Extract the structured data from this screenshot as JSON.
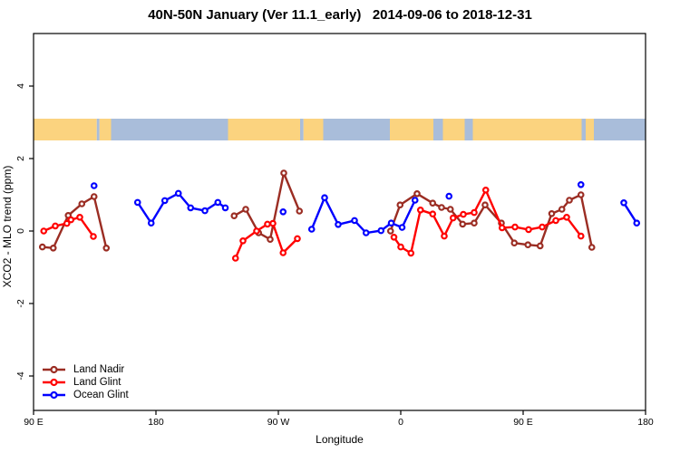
{
  "chart_data": {
    "type": "line",
    "title": "40N-50N January (Ver 11.1_early)   2014-09-06 to 2018-12-31",
    "xlabel": "Longitude",
    "ylabel": "XCO2 - MLO trend (ppm)",
    "x_axis_span": [
      90,
      540
    ],
    "y_axis_span": [
      -5.45,
      5.45
    ],
    "x_ticks": [
      {
        "pos": 90,
        "label": "90 E"
      },
      {
        "pos": 180,
        "label": "180"
      },
      {
        "pos": 270,
        "label": "90 W"
      },
      {
        "pos": 360,
        "label": "0"
      },
      {
        "pos": 450,
        "label": "90 E"
      },
      {
        "pos": 540,
        "label": "180"
      }
    ],
    "y_ticks": [
      {
        "pos": -4,
        "label": "-4"
      },
      {
        "pos": -2,
        "label": "-2"
      },
      {
        "pos": 0,
        "label": "0"
      },
      {
        "pos": 2,
        "label": "2"
      },
      {
        "pos": 4,
        "label": "4"
      }
    ],
    "map_band": {
      "y_top": 3.1,
      "y_bottom": 2.5,
      "land_color": "#FBD37F",
      "ocean_color": "#A9BDDA",
      "segments": [
        {
          "from": 90,
          "to": 136.5,
          "type": "land"
        },
        {
          "from": 136.5,
          "to": 138.5,
          "type": "ocean"
        },
        {
          "from": 138.5,
          "to": 147,
          "type": "land"
        },
        {
          "from": 147,
          "to": 233,
          "type": "ocean"
        },
        {
          "from": 233,
          "to": 286,
          "type": "land"
        },
        {
          "from": 286,
          "to": 288.5,
          "type": "ocean"
        },
        {
          "from": 288.5,
          "to": 303,
          "type": "land"
        },
        {
          "from": 303,
          "to": 352,
          "type": "ocean"
        },
        {
          "from": 352,
          "to": 384,
          "type": "land"
        },
        {
          "from": 384,
          "to": 391,
          "type": "ocean"
        },
        {
          "from": 391,
          "to": 407,
          "type": "land"
        },
        {
          "from": 407,
          "to": 413,
          "type": "ocean"
        },
        {
          "from": 413,
          "to": 493,
          "type": "land"
        },
        {
          "from": 493,
          "to": 496,
          "type": "ocean"
        },
        {
          "from": 496,
          "to": 502,
          "type": "land"
        },
        {
          "from": 502,
          "to": 540,
          "type": "ocean"
        }
      ]
    },
    "series": [
      {
        "name": "Land Nadir",
        "color": "#9B2D23",
        "segments": [
          [
            [
              96.5,
              -0.44
            ],
            [
              104.5,
              -0.47
            ],
            [
              115.5,
              0.43
            ],
            [
              125.5,
              0.75
            ],
            [
              134.5,
              0.95
            ],
            [
              143.5,
              -0.47
            ]
          ],
          [
            [
              237.5,
              0.42
            ],
            [
              246,
              0.6
            ],
            [
              255.5,
              -0.05
            ],
            [
              264,
              -0.23
            ],
            [
              274,
              1.6
            ],
            [
              285.5,
              0.55
            ]
          ],
          [
            [
              352.5,
              0.0
            ],
            [
              359.5,
              0.72
            ],
            [
              372,
              1.03
            ],
            [
              383.5,
              0.77
            ],
            [
              390,
              0.65
            ],
            [
              396.5,
              0.6
            ],
            [
              405.5,
              0.19
            ],
            [
              414,
              0.22
            ],
            [
              422,
              0.72
            ],
            [
              434,
              0.22
            ],
            [
              443.5,
              -0.33
            ],
            [
              453.5,
              -0.38
            ],
            [
              462.5,
              -0.41
            ],
            [
              471,
              0.48
            ],
            [
              478.5,
              0.6
            ],
            [
              484,
              0.85
            ],
            [
              492.5,
              1.0
            ],
            [
              500.5,
              -0.45
            ]
          ]
        ]
      },
      {
        "name": "Land Glint",
        "color": "#FF0000",
        "segments": [
          [
            [
              97.5,
              0.0
            ],
            [
              106,
              0.14
            ],
            [
              114.5,
              0.21
            ],
            [
              117.5,
              0.31
            ],
            [
              124,
              0.38
            ],
            [
              134,
              -0.15
            ]
          ],
          [
            [
              238.5,
              -0.75
            ],
            [
              244,
              -0.27
            ],
            [
              254,
              0.0
            ],
            [
              262,
              0.19
            ],
            [
              266,
              0.21
            ],
            [
              273.5,
              -0.6
            ],
            [
              284,
              -0.21
            ]
          ],
          [
            [
              355,
              -0.17
            ],
            [
              360,
              -0.44
            ],
            [
              367.5,
              -0.61
            ],
            [
              374.5,
              0.58
            ],
            [
              383.5,
              0.47
            ],
            [
              392,
              -0.14
            ],
            [
              398.5,
              0.36
            ],
            [
              406,
              0.46
            ],
            [
              414,
              0.51
            ],
            [
              422.5,
              1.13
            ],
            [
              434.5,
              0.09
            ],
            [
              444,
              0.11
            ],
            [
              454,
              0.04
            ],
            [
              464,
              0.11
            ],
            [
              474,
              0.29
            ],
            [
              482,
              0.38
            ],
            [
              492.5,
              -0.14
            ]
          ]
        ]
      },
      {
        "name": "Ocean Glint",
        "color": "#0000FF",
        "segments": [
          [
            [
              134.5,
              1.25
            ]
          ],
          [
            [
              166.5,
              0.79
            ],
            [
              176.5,
              0.22
            ],
            [
              186.5,
              0.84
            ],
            [
              196.5,
              1.04
            ],
            [
              205.5,
              0.64
            ],
            [
              216,
              0.56
            ],
            [
              225.5,
              0.79
            ],
            [
              231,
              0.64
            ]
          ],
          [
            [
              273.5,
              0.53
            ]
          ],
          [
            [
              294.5,
              0.05
            ],
            [
              304,
              0.92
            ],
            [
              314,
              0.18
            ],
            [
              326,
              0.29
            ],
            [
              334.5,
              -0.05
            ],
            [
              345.5,
              0.01
            ],
            [
              353,
              0.22
            ],
            [
              361,
              0.1
            ],
            [
              370.5,
              0.85
            ]
          ],
          [
            [
              395.5,
              0.96
            ]
          ],
          [
            [
              492.5,
              1.28
            ]
          ],
          [
            [
              524,
              0.78
            ],
            [
              533.5,
              0.22
            ]
          ]
        ]
      }
    ]
  }
}
